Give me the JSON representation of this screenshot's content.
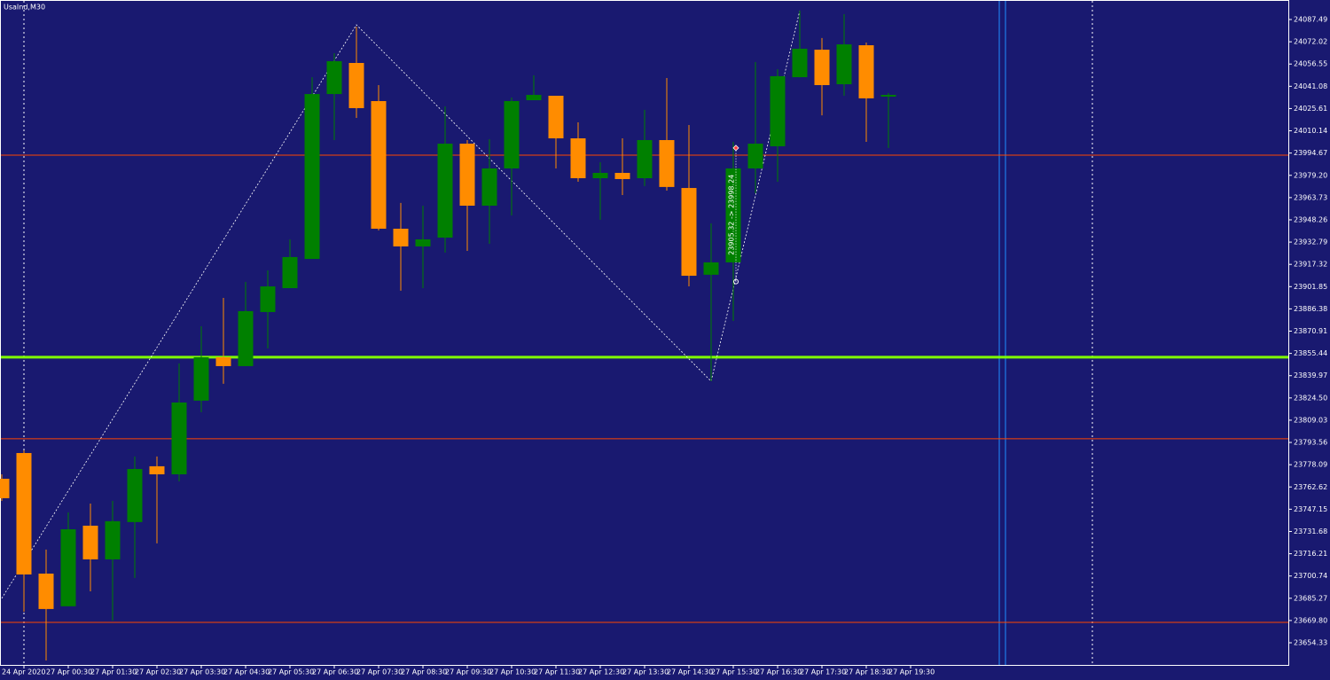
{
  "chart_data": {
    "type": "candlestick",
    "title": "UsaInd,M30",
    "up_color": "#008000",
    "down_color": "#ff8c00",
    "categories": [
      null,
      "24 Apr 2020",
      null,
      "27 Apr 00:30",
      null,
      "27 Apr 01:30",
      null,
      "27 Apr 02:30",
      null,
      "27 Apr 03:30",
      null,
      "27 Apr 04:30",
      null,
      "27 Apr 05:30",
      null,
      "27 Apr 06:30",
      null,
      "27 Apr 07:30",
      null,
      "27 Apr 08:30",
      null,
      "27 Apr 09:30",
      null,
      "27 Apr 10:30",
      null,
      "27 Apr 11:30",
      null,
      "27 Apr 12:30",
      null,
      "27 Apr 13:30",
      null,
      "27 Apr 14:30",
      null,
      "27 Apr 15:30",
      null,
      "27 Apr 16:30",
      null,
      "27 Apr 17:30",
      null,
      "27 Apr 18:30",
      null,
      "27 Apr 19:30"
    ],
    "open": [
      23768.3,
      23786.2,
      23702.4,
      23679.7,
      23735.7,
      23712.3,
      23738.2,
      23777.0,
      23771.4,
      23822.6,
      23852.8,
      23846.6,
      23884.2,
      23900.8,
      23921.1,
      24035.7,
      24057.3,
      24030.8,
      23942.1,
      23929.8,
      23935.9,
      24001.2,
      23958.1,
      23984.0,
      24031.4,
      24034.5,
      24004.9,
      23977.2,
      23980.9,
      23977.2,
      24003.7,
      23970.4,
      23910.1,
      23918.7,
      23984.0,
      23999.4,
      24047.4,
      24066.5,
      24042.5,
      24069.6,
      24033.9,
      null
    ],
    "high": [
      23771.4,
      23788.1,
      23719.1,
      23744.9,
      23751.1,
      23752.9,
      23783.8,
      23783.8,
      23848.5,
      23874.3,
      23894.0,
      23905.1,
      23913.1,
      23934.7,
      24047.4,
      24064.1,
      24082.56,
      24041.9,
      23960.0,
      23958.1,
      24027.1,
      24003.7,
      24004.3,
      24033.3,
      24048.7,
      24034.5,
      24016.0,
      23988.3,
      24004.9,
      24024.7,
      24046.8,
      24014.2,
      23945.8,
      24002.5,
      24057.9,
      24053.0,
      24093.65,
      24074.6,
      24091.2,
      24071.5,
      24036.4,
      null
    ],
    "low": [
      23752.9,
      23675.9,
      23642.0,
      23679.7,
      23690.1,
      23669.8,
      23699.4,
      23723.4,
      23766.5,
      23814.6,
      23834.3,
      23846.6,
      23858.9,
      23900.8,
      23921.1,
      24003.7,
      24019.1,
      23940.9,
      23899.0,
      23900.8,
      23925.5,
      23926.7,
      23931.6,
      23951.3,
      24031.4,
      23984.0,
      23974.7,
      23948.3,
      23965.5,
      23971.7,
      23968.6,
      23902.0,
      23836.1,
      23878.0,
      23966.7,
      23974.7,
      24047.4,
      24020.9,
      24034.5,
      24002.5,
      23998.2,
      null
    ],
    "close": [
      23754.8,
      23701.8,
      23677.8,
      23733.2,
      23712.3,
      23738.8,
      23775.1,
      23771.4,
      23821.3,
      23852.8,
      23846.6,
      23884.8,
      23902.0,
      23922.4,
      24035.7,
      24058.5,
      24025.9,
      23942.1,
      23929.8,
      23934.7,
      24001.2,
      23958.1,
      23984.0,
      24030.8,
      24035.1,
      24004.9,
      23977.2,
      23980.9,
      23976.6,
      24003.7,
      23971.1,
      23909.4,
      23918.7,
      23984.0,
      24001.2,
      24048.1,
      24067.2,
      24041.9,
      24070.2,
      24032.7,
      24035.1,
      null
    ],
    "ylim": [
      23638.93,
      24101.05
    ],
    "yticks": [
      24087.49,
      24072.02,
      24056.55,
      24041.08,
      24025.61,
      24010.14,
      23994.67,
      {
        "value": 23979.2,
        "label": "23979.20"
      },
      23963.73,
      23948.26,
      23932.79,
      23917.32,
      23901.85,
      23886.38,
      23870.91,
      23855.44,
      23839.97,
      {
        "value": 23824.5,
        "label": "23824.50"
      },
      23809.03,
      23793.56,
      23778.09,
      23762.62,
      23747.15,
      23731.68,
      23716.21,
      23700.74,
      23685.27,
      {
        "value": 23669.8,
        "label": "23669.80"
      },
      23654.33
    ],
    "hlines": [
      {
        "value": 23993.2,
        "color": "#ff4500",
        "width": 1
      },
      {
        "value": 23796.1,
        "color": "#ff4500",
        "width": 1
      },
      {
        "value": 23668.5,
        "color": "#ff4500",
        "width": 1
      },
      {
        "value": 23852.8,
        "color": "#7fff00",
        "width": 3
      }
    ],
    "zigzag": {
      "color": "#ffffff",
      "indices": [
        0,
        16,
        32,
        36
      ],
      "values": [
        23685.2,
        24083.8,
        23836.1,
        24093.65
      ]
    },
    "annotation": {
      "text": "23905.32 -> 23998.24",
      "index": 33,
      "from": 23905.32,
      "to": 23998.24
    }
  }
}
